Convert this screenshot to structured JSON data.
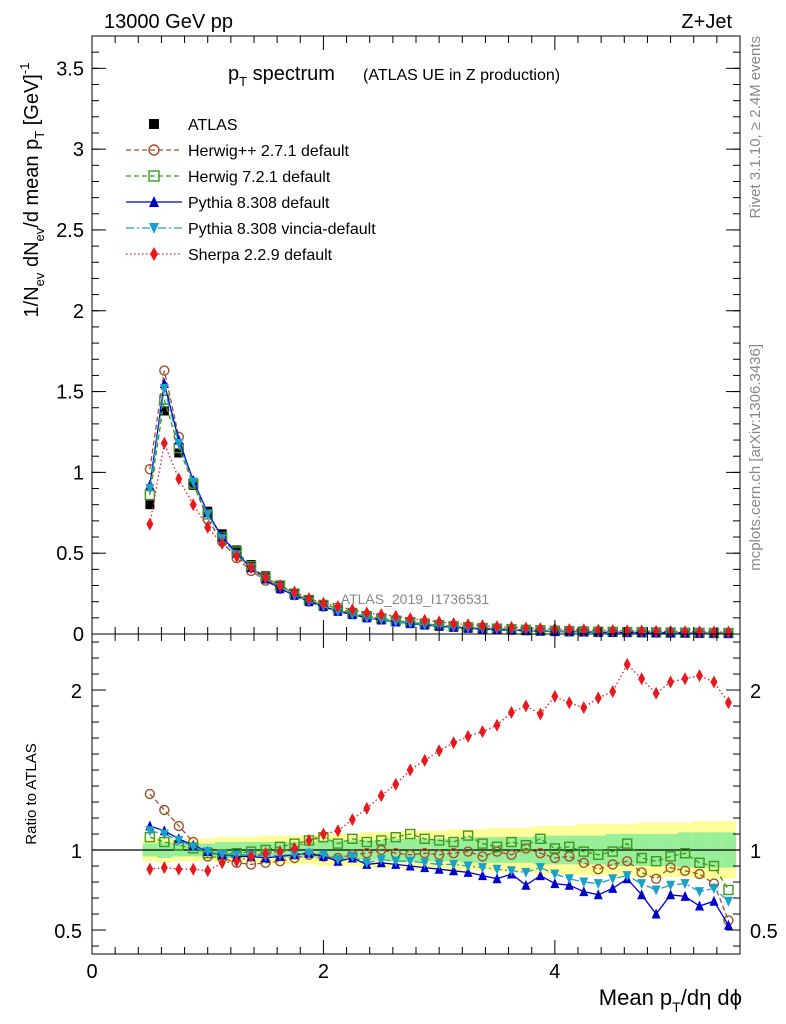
{
  "header": {
    "left": "13000 GeV pp",
    "right": "Z+Jet"
  },
  "side": {
    "rivet": "Rivet 3.1.10, ≥ 2.4M events",
    "mcplots": "mcplots.cern.ch [arXiv:1306.3436]"
  },
  "watermark": "ATLAS_2019_I1736531",
  "chart_data": [
    {
      "type": "line",
      "title": "p_T spectrum",
      "title_main": "p",
      "title_sub": "T",
      "title_rest": " spectrum",
      "subtitle": "(ATLAS UE in Z production)",
      "ylabel": "1/N_ev dN_ev/d mean p_T [GeV]^-1",
      "ylim": [
        0,
        3.7
      ],
      "yticks": [
        "0",
        "0.5",
        "1",
        "1.5",
        "2",
        "2.5",
        "3",
        "3.5"
      ],
      "x": [
        0.5,
        0.625,
        0.75,
        0.875,
        1.0,
        1.125,
        1.25,
        1.375,
        1.5,
        1.625,
        1.75,
        1.875,
        2.0,
        2.125,
        2.25,
        2.375,
        2.5,
        2.625,
        2.75,
        2.875,
        3.0,
        3.125,
        3.25,
        3.375,
        3.5,
        3.625,
        3.75,
        3.875,
        4.0,
        4.125,
        4.25,
        4.375,
        4.5,
        4.625,
        4.75,
        4.875,
        5.0,
        5.125,
        5.25,
        5.375,
        5.5
      ],
      "legend": [
        "ATLAS",
        "Herwig++ 2.7.1 default",
        "Herwig 7.2.1 default",
        "Pythia 8.308 default",
        "Pythia 8.308 vincia-default",
        "Sherpa 2.2.9 default"
      ],
      "series": [
        {
          "name": "ATLAS",
          "color": "#000000",
          "marker": "square-filled",
          "values": [
            0.8,
            1.38,
            1.12,
            0.92,
            0.76,
            0.62,
            0.52,
            0.43,
            0.36,
            0.3,
            0.25,
            0.21,
            0.18,
            0.15,
            0.13,
            0.11,
            0.095,
            0.082,
            0.071,
            0.062,
            0.054,
            0.047,
            0.041,
            0.036,
            0.032,
            0.028,
            0.025,
            0.022,
            0.02,
            0.018,
            0.016,
            0.014,
            0.013,
            0.012,
            0.011,
            0.01,
            0.009,
            0.008,
            0.007,
            0.0065,
            0.006
          ]
        },
        {
          "name": "Herwig++ 2.7.1 default",
          "color": "#a0522d",
          "marker": "circle-open",
          "values": [
            1.02,
            1.63,
            1.22,
            0.93,
            0.71,
            0.57,
            0.47,
            0.39,
            0.33,
            0.28,
            0.24,
            0.2,
            0.17,
            0.145,
            0.125,
            0.11,
            0.095,
            0.082,
            0.071,
            0.062,
            0.054,
            0.047,
            0.041,
            0.036,
            0.032,
            0.028,
            0.025,
            0.022,
            0.02,
            0.018,
            0.016,
            0.014,
            0.013,
            0.012,
            0.011,
            0.01,
            0.009,
            0.008,
            0.007,
            0.0065,
            0.006
          ]
        },
        {
          "name": "Herwig 7.2.1 default",
          "color": "#3c9a1e",
          "marker": "square-open",
          "values": [
            0.86,
            1.45,
            1.15,
            0.93,
            0.74,
            0.6,
            0.51,
            0.42,
            0.35,
            0.3,
            0.25,
            0.21,
            0.18,
            0.16,
            0.13,
            0.11,
            0.096,
            0.083,
            0.073,
            0.064,
            0.055,
            0.048,
            0.042,
            0.037,
            0.033,
            0.029,
            0.026,
            0.023,
            0.02,
            0.018,
            0.016,
            0.014,
            0.013,
            0.012,
            0.011,
            0.01,
            0.009,
            0.008,
            0.007,
            0.0065,
            0.006
          ]
        },
        {
          "name": "Pythia 8.308 default",
          "color": "#0000cc",
          "marker": "triangle-up",
          "values": [
            0.92,
            1.55,
            1.2,
            0.95,
            0.75,
            0.6,
            0.5,
            0.41,
            0.34,
            0.28,
            0.24,
            0.2,
            0.17,
            0.14,
            0.12,
            0.1,
            0.087,
            0.074,
            0.064,
            0.055,
            0.047,
            0.041,
            0.035,
            0.03,
            0.026,
            0.023,
            0.02,
            0.017,
            0.015,
            0.013,
            0.012,
            0.01,
            0.009,
            0.009,
            0.008,
            0.007,
            0.007,
            0.006,
            0.005,
            0.0045,
            0.004
          ]
        },
        {
          "name": "Pythia 8.308 vincia-default",
          "color": "#1ba1c7",
          "marker": "triangle-down",
          "values": [
            0.9,
            1.52,
            1.18,
            0.94,
            0.74,
            0.59,
            0.49,
            0.41,
            0.34,
            0.29,
            0.24,
            0.2,
            0.17,
            0.14,
            0.12,
            0.1,
            0.089,
            0.076,
            0.066,
            0.057,
            0.049,
            0.043,
            0.037,
            0.032,
            0.028,
            0.024,
            0.021,
            0.019,
            0.016,
            0.014,
            0.013,
            0.011,
            0.01,
            0.01,
            0.009,
            0.008,
            0.007,
            0.006,
            0.006,
            0.005,
            0.0045
          ]
        },
        {
          "name": "Sherpa 2.2.9 default",
          "color": "#e8191e",
          "marker": "diamond",
          "values": [
            0.68,
            1.18,
            0.96,
            0.8,
            0.66,
            0.56,
            0.48,
            0.41,
            0.35,
            0.3,
            0.26,
            0.22,
            0.19,
            0.17,
            0.15,
            0.13,
            0.12,
            0.11,
            0.095,
            0.085,
            0.075,
            0.065,
            0.058,
            0.052,
            0.046,
            0.041,
            0.037,
            0.034,
            0.031,
            0.028,
            0.026,
            0.024,
            0.022,
            0.02,
            0.019,
            0.017,
            0.016,
            0.015,
            0.014,
            0.013,
            0.012
          ]
        }
      ]
    },
    {
      "type": "line",
      "ylabel": "Ratio to ATLAS",
      "xlabel": "Mean p_T/dη dϕ",
      "xlabel_main": "Mean p",
      "xlabel_sub": "T",
      "xlabel_rest": "/dη dϕ",
      "xlim": [
        0,
        5.6
      ],
      "xticks": [
        "0",
        "2",
        "4"
      ],
      "ylim": [
        0.35,
        2.35
      ],
      "yticks": [
        "0.5",
        "1",
        "2"
      ],
      "band_green": [
        0.96,
        0.95,
        0.96,
        0.96,
        0.96,
        0.95,
        0.95,
        0.95,
        0.95,
        0.95,
        0.95,
        0.95,
        0.94,
        0.94,
        0.94,
        0.94,
        0.94,
        0.93,
        0.93,
        0.93,
        0.93,
        0.93,
        0.92,
        0.92,
        0.92,
        0.92,
        0.92,
        0.91,
        0.91,
        0.91,
        0.91,
        0.91,
        0.9,
        0.9,
        0.9,
        0.9,
        0.9,
        0.89,
        0.89,
        0.89,
        0.89
      ],
      "band_green_hi": [
        1.04,
        1.05,
        1.04,
        1.04,
        1.04,
        1.05,
        1.05,
        1.05,
        1.05,
        1.05,
        1.05,
        1.05,
        1.06,
        1.06,
        1.06,
        1.06,
        1.06,
        1.07,
        1.07,
        1.07,
        1.07,
        1.07,
        1.08,
        1.08,
        1.08,
        1.08,
        1.08,
        1.09,
        1.09,
        1.09,
        1.09,
        1.09,
        1.1,
        1.1,
        1.1,
        1.1,
        1.1,
        1.11,
        1.11,
        1.11,
        1.11
      ],
      "band_yellow": [
        0.93,
        0.92,
        0.93,
        0.93,
        0.93,
        0.92,
        0.92,
        0.92,
        0.91,
        0.91,
        0.91,
        0.91,
        0.9,
        0.9,
        0.9,
        0.89,
        0.89,
        0.89,
        0.88,
        0.88,
        0.88,
        0.87,
        0.87,
        0.87,
        0.86,
        0.86,
        0.86,
        0.85,
        0.85,
        0.85,
        0.84,
        0.84,
        0.84,
        0.84,
        0.83,
        0.83,
        0.83,
        0.83,
        0.82,
        0.82,
        0.82
      ],
      "band_yellow_hi": [
        1.07,
        1.08,
        1.07,
        1.07,
        1.07,
        1.08,
        1.08,
        1.08,
        1.09,
        1.09,
        1.09,
        1.09,
        1.1,
        1.1,
        1.1,
        1.11,
        1.11,
        1.11,
        1.12,
        1.12,
        1.12,
        1.13,
        1.13,
        1.13,
        1.14,
        1.14,
        1.14,
        1.15,
        1.15,
        1.15,
        1.16,
        1.16,
        1.16,
        1.16,
        1.17,
        1.17,
        1.17,
        1.17,
        1.18,
        1.18,
        1.18
      ],
      "series": [
        {
          "name": "Herwig++ 2.7.1 default",
          "color": "#a0522d",
          "marker": "circle-open",
          "values": [
            1.35,
            1.25,
            1.15,
            1.05,
            0.96,
            0.95,
            0.92,
            0.91,
            0.92,
            0.93,
            0.95,
            0.97,
            0.96,
            0.95,
            0.97,
            0.98,
            1.0,
            0.98,
            0.97,
            0.98,
            0.97,
            0.98,
            0.99,
            0.96,
            0.99,
            0.97,
            1.01,
            0.98,
            0.95,
            0.96,
            0.92,
            0.88,
            0.91,
            0.93,
            0.86,
            0.82,
            0.89,
            0.87,
            0.85,
            0.79,
            0.56
          ]
        },
        {
          "name": "Herwig 7.2.1 default",
          "color": "#3c9a1e",
          "marker": "square-open",
          "values": [
            1.08,
            1.05,
            1.03,
            1.01,
            0.98,
            0.97,
            0.98,
            0.99,
            1.0,
            1.02,
            1.04,
            1.06,
            1.08,
            1.04,
            1.07,
            1.05,
            1.06,
            1.08,
            1.1,
            1.07,
            1.06,
            1.05,
            1.09,
            1.04,
            1.02,
            1.05,
            1.03,
            1.07,
            1.01,
            1.02,
            0.99,
            0.97,
            0.99,
            1.04,
            0.95,
            0.93,
            0.96,
            0.98,
            0.92,
            0.9,
            0.75
          ]
        },
        {
          "name": "Pythia 8.308 default",
          "color": "#0000cc",
          "marker": "triangle-up",
          "values": [
            1.15,
            1.12,
            1.07,
            1.03,
            0.99,
            0.97,
            0.96,
            0.96,
            0.95,
            0.96,
            0.97,
            0.98,
            0.96,
            0.93,
            0.95,
            0.91,
            0.92,
            0.91,
            0.9,
            0.89,
            0.88,
            0.87,
            0.86,
            0.84,
            0.82,
            0.85,
            0.78,
            0.84,
            0.79,
            0.78,
            0.74,
            0.72,
            0.76,
            0.82,
            0.72,
            0.6,
            0.72,
            0.71,
            0.65,
            0.68,
            0.53
          ]
        },
        {
          "name": "Pythia 8.308 vincia-default",
          "color": "#1ba1c7",
          "marker": "triangle-down",
          "values": [
            1.12,
            1.1,
            1.06,
            1.02,
            0.99,
            0.97,
            0.97,
            0.97,
            0.96,
            0.97,
            0.97,
            0.98,
            0.97,
            0.94,
            0.96,
            0.92,
            0.94,
            0.93,
            0.93,
            0.92,
            0.91,
            0.91,
            0.9,
            0.89,
            0.88,
            0.87,
            0.86,
            0.89,
            0.85,
            0.82,
            0.8,
            0.79,
            0.82,
            0.84,
            0.79,
            0.75,
            0.78,
            0.79,
            0.74,
            0.76,
            0.68
          ]
        },
        {
          "name": "Sherpa 2.2.9 default",
          "color": "#e8191e",
          "marker": "diamond",
          "values": [
            0.88,
            0.89,
            0.88,
            0.88,
            0.87,
            0.92,
            0.93,
            0.96,
            0.98,
            0.99,
            1.01,
            1.06,
            1.1,
            1.12,
            1.19,
            1.26,
            1.34,
            1.41,
            1.5,
            1.56,
            1.62,
            1.67,
            1.71,
            1.74,
            1.78,
            1.86,
            1.9,
            1.85,
            1.96,
            1.92,
            1.89,
            1.95,
            1.99,
            2.16,
            2.07,
            1.98,
            2.05,
            2.07,
            2.09,
            2.05,
            1.92
          ]
        }
      ]
    }
  ]
}
